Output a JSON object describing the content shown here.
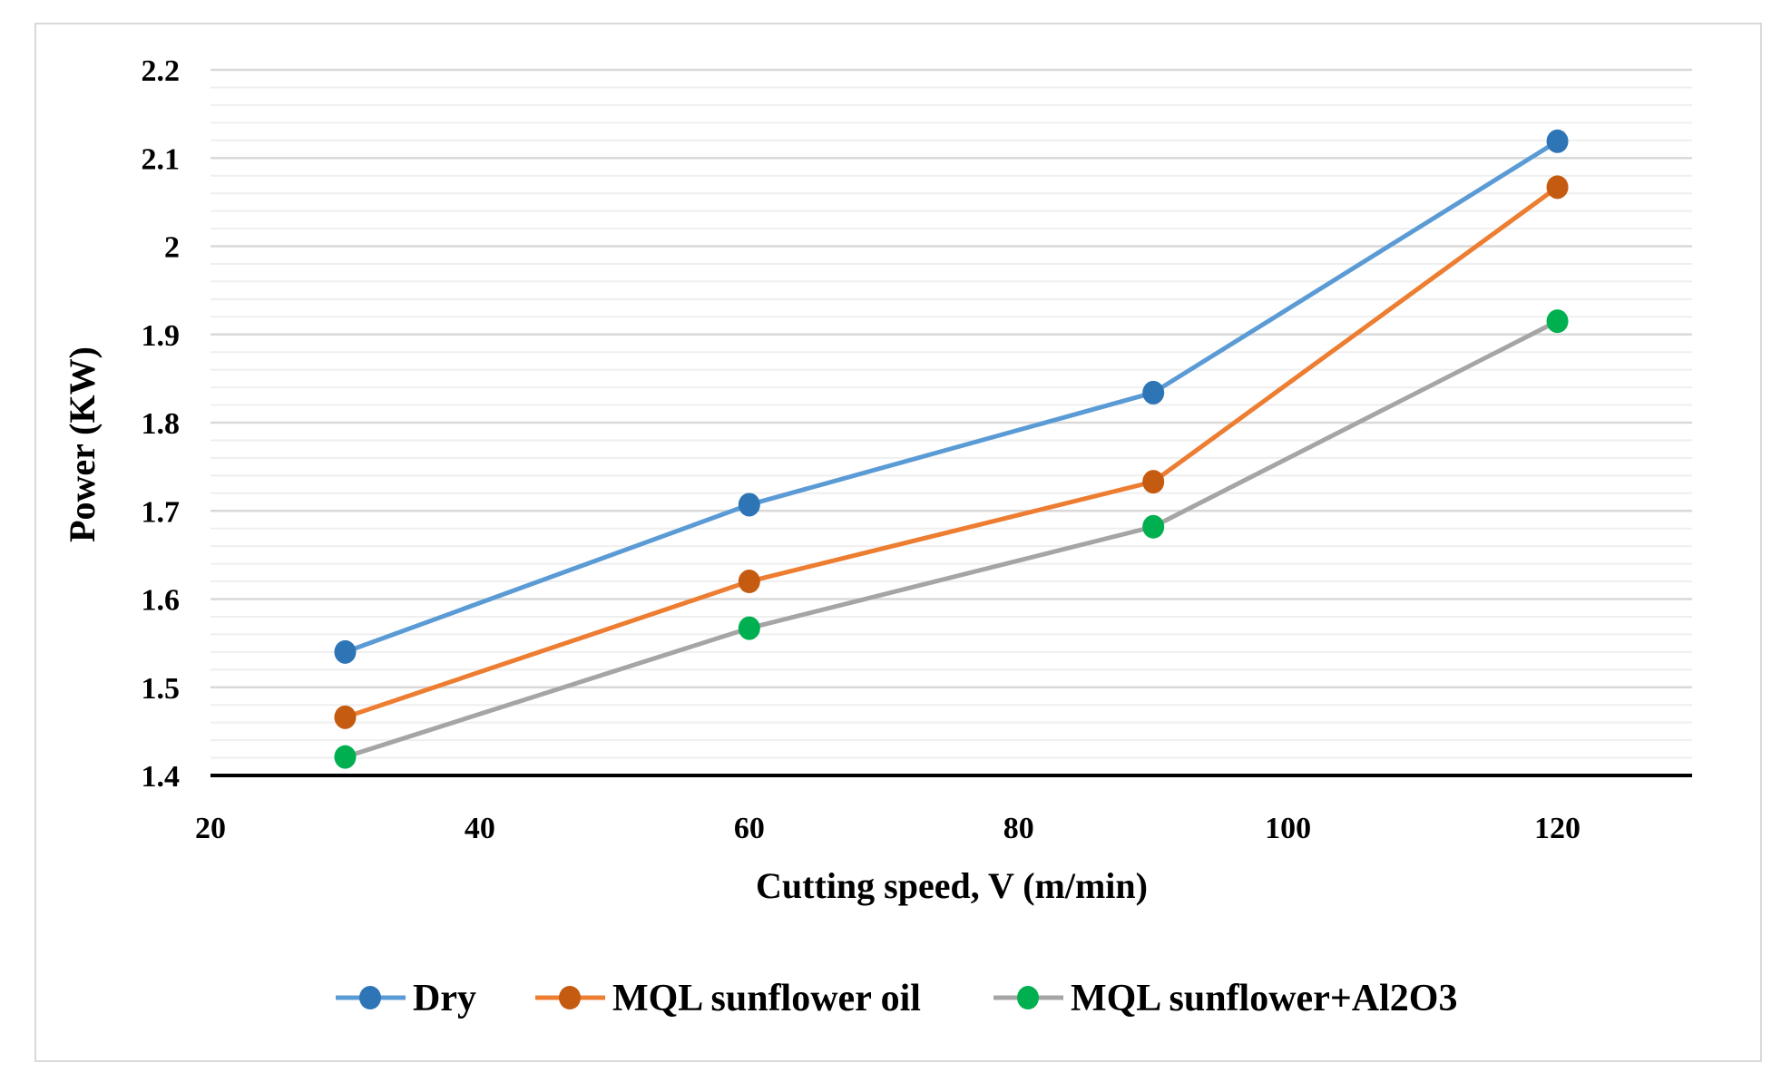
{
  "chart_data": {
    "type": "line",
    "title": "",
    "xlabel": "Cutting speed, V (m/min)",
    "ylabel": "Power (KW)",
    "xlim": [
      20,
      130
    ],
    "ylim": [
      1.4,
      2.2
    ],
    "x_ticks": [
      "20",
      "40",
      "60",
      "80",
      "100",
      "120"
    ],
    "y_ticks": [
      "1.4",
      "1.5",
      "1.6",
      "1.7",
      "1.8",
      "1.9",
      "2",
      "2.1",
      "2.2"
    ],
    "grid": "major and minor horizontal",
    "legend_position": "bottom",
    "x": [
      30,
      60,
      90,
      120
    ],
    "series": [
      {
        "name": "Dry",
        "values": [
          1.54,
          1.707,
          1.834,
          2.119
        ],
        "line_color": "#5b9bd5",
        "marker_color": "#2e75b6"
      },
      {
        "name": "MQL sunflower oil",
        "values": [
          1.466,
          1.62,
          1.733,
          2.067
        ],
        "line_color": "#ed7d31",
        "marker_color": "#c55a11"
      },
      {
        "name": "MQL sunflower+Al2O3",
        "values": [
          1.421,
          1.567,
          1.682,
          1.915
        ],
        "line_color": "#a5a5a5",
        "marker_color": "#00b050"
      }
    ]
  }
}
